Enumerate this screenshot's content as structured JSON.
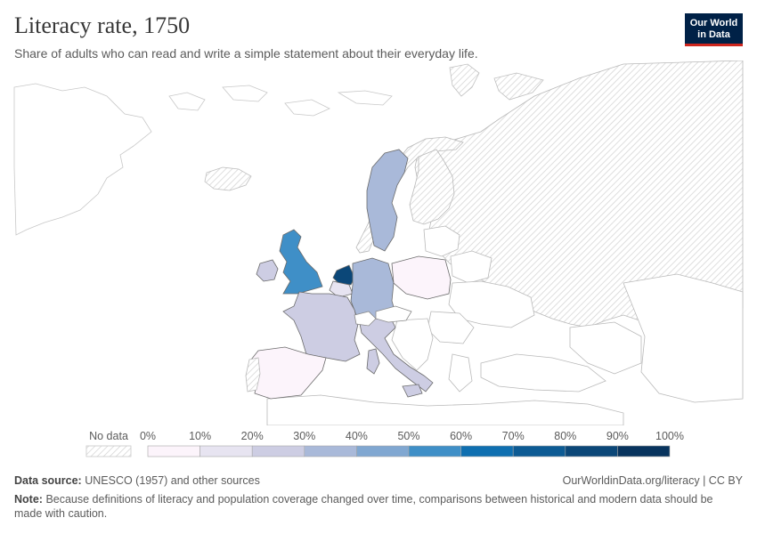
{
  "header": {
    "title": "Literacy rate, 1750",
    "subtitle": "Share of adults who can read and write a simple statement about their everyday life."
  },
  "logo": {
    "line1": "Our World",
    "line2": "in Data"
  },
  "colors": {
    "no_data_hatch": "#d6d6d6",
    "border": "#a6a6a6",
    "bins": [
      "#fcf4fb",
      "#e7e4f1",
      "#cdcde3",
      "#a9b9d9",
      "#80a7d1",
      "#3f8fc7",
      "#0f6fb0",
      "#0d5b94",
      "#0b4778",
      "#08345e"
    ]
  },
  "legend": {
    "no_data_label": "No data",
    "ticks": [
      "0%",
      "10%",
      "20%",
      "30%",
      "40%",
      "50%",
      "60%",
      "70%",
      "80%",
      "90%",
      "100%"
    ]
  },
  "countries": [
    {
      "name": "Sweden",
      "rate": 35
    },
    {
      "name": "United Kingdom",
      "rate": 54
    },
    {
      "name": "Ireland",
      "rate": 20
    },
    {
      "name": "Netherlands",
      "rate": 85
    },
    {
      "name": "Belgium",
      "rate": 10
    },
    {
      "name": "Germany",
      "rate": 35
    },
    {
      "name": "France",
      "rate": 25
    },
    {
      "name": "Italy",
      "rate": 20
    },
    {
      "name": "Spain",
      "rate": 5
    },
    {
      "name": "Poland",
      "rate": 5
    },
    {
      "name": "Sardinia",
      "rate": 20
    },
    {
      "name": "Sicily",
      "rate": 20
    }
  ],
  "footer": {
    "source_label": "Data source:",
    "source_text": "UNESCO (1957) and other sources",
    "link_text": "OurWorldinData.org/literacy | CC BY",
    "note_label": "Note:",
    "note_text": "Because definitions of literacy and population coverage changed over time, comparisons between historical and modern data should be made with caution."
  }
}
